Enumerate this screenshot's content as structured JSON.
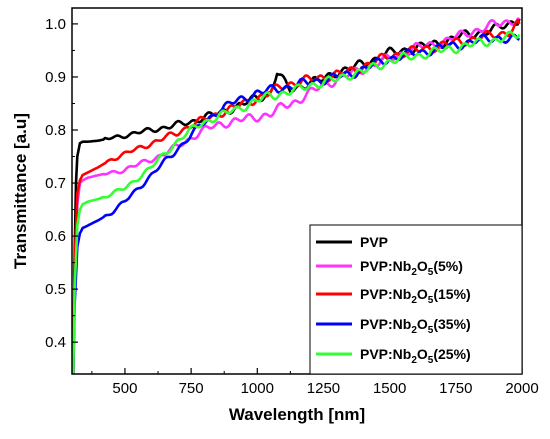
{
  "chart_data": {
    "type": "line",
    "title": "",
    "xlabel": "Wavelength [nm]",
    "ylabel": "Transmittance [a.u]",
    "xlim": [
      300,
      2000
    ],
    "ylim": [
      0.34,
      1.03
    ],
    "x_ticks": [
      500,
      750,
      1000,
      1250,
      1500,
      1750,
      2000
    ],
    "y_ticks": [
      0.4,
      0.5,
      0.6,
      0.7,
      0.8,
      0.9,
      1.0
    ],
    "x_tick_labels": [
      "500",
      "750",
      "1000",
      "1250",
      "1500",
      "1750",
      "2000"
    ],
    "y_tick_labels": [
      "0.4",
      "0.5",
      "0.6",
      "0.7",
      "0.8",
      "0.9",
      "1.0"
    ],
    "grid": false,
    "legend_position": "bottom-right",
    "series": [
      {
        "name": "PVP",
        "legend_parts": [
          "PVP"
        ],
        "color": "#000000",
        "x": [
          305,
          310,
          315,
          320,
          330,
          340,
          360,
          400,
          450,
          500,
          550,
          600,
          650,
          700,
          750,
          800,
          850,
          900,
          950,
          1000,
          1050,
          1075,
          1100,
          1125,
          1150,
          1200,
          1250,
          1300,
          1350,
          1400,
          1450,
          1500,
          1550,
          1600,
          1650,
          1700,
          1750,
          1800,
          1850,
          1900,
          1950,
          1990
        ],
        "y": [
          0.34,
          0.56,
          0.7,
          0.75,
          0.775,
          0.778,
          0.778,
          0.78,
          0.785,
          0.79,
          0.795,
          0.8,
          0.805,
          0.81,
          0.815,
          0.825,
          0.83,
          0.84,
          0.85,
          0.86,
          0.87,
          0.91,
          0.89,
          0.875,
          0.88,
          0.89,
          0.895,
          0.91,
          0.915,
          0.925,
          0.935,
          0.945,
          0.95,
          0.955,
          0.96,
          0.965,
          0.975,
          0.98,
          0.985,
          0.99,
          1.0,
          1.01
        ]
      },
      {
        "name": "PVP:Nb2O5(5%)",
        "legend_parts": [
          "PVP:Nb",
          "2",
          "O",
          "5",
          "(5%)"
        ],
        "color": "#ff33ff",
        "x": [
          305,
          310,
          320,
          330,
          340,
          360,
          400,
          450,
          500,
          550,
          600,
          650,
          700,
          750,
          800,
          850,
          900,
          950,
          1000,
          1050,
          1100,
          1150,
          1200,
          1250,
          1300,
          1350,
          1400,
          1450,
          1500,
          1550,
          1600,
          1650,
          1700,
          1750,
          1800,
          1850,
          1900,
          1950,
          1990
        ],
        "y": [
          0.34,
          0.52,
          0.66,
          0.7,
          0.705,
          0.71,
          0.715,
          0.72,
          0.725,
          0.735,
          0.745,
          0.755,
          0.77,
          0.785,
          0.8,
          0.81,
          0.815,
          0.82,
          0.825,
          0.83,
          0.845,
          0.855,
          0.87,
          0.885,
          0.895,
          0.905,
          0.915,
          0.925,
          0.935,
          0.945,
          0.955,
          0.96,
          0.965,
          0.975,
          0.985,
          0.99,
          1.0,
          1.005,
          1.01
        ]
      },
      {
        "name": "PVP:Nb2O5(15%)",
        "legend_parts": [
          "PVP:Nb",
          "2",
          "O",
          "5",
          "(15%)"
        ],
        "color": "#ff0000",
        "x": [
          305,
          310,
          320,
          330,
          340,
          360,
          400,
          450,
          500,
          550,
          600,
          650,
          700,
          750,
          800,
          850,
          900,
          950,
          1000,
          1050,
          1100,
          1150,
          1200,
          1250,
          1300,
          1350,
          1400,
          1450,
          1500,
          1550,
          1600,
          1650,
          1700,
          1750,
          1800,
          1850,
          1900,
          1950,
          1990
        ],
        "y": [
          0.34,
          0.55,
          0.68,
          0.705,
          0.715,
          0.72,
          0.73,
          0.745,
          0.755,
          0.765,
          0.775,
          0.785,
          0.795,
          0.81,
          0.82,
          0.83,
          0.84,
          0.85,
          0.86,
          0.87,
          0.885,
          0.89,
          0.895,
          0.9,
          0.905,
          0.91,
          0.92,
          0.93,
          0.94,
          0.945,
          0.95,
          0.955,
          0.96,
          0.965,
          0.97,
          0.975,
          0.98,
          0.985,
          1.0
        ]
      },
      {
        "name": "PVP:Nb2O5(35%)",
        "legend_parts": [
          "PVP:Nb",
          "2",
          "O",
          "5",
          "(35%)"
        ],
        "color": "#0000ff",
        "x": [
          305,
          310,
          320,
          330,
          340,
          360,
          400,
          450,
          500,
          550,
          600,
          650,
          700,
          750,
          800,
          850,
          900,
          950,
          1000,
          1050,
          1100,
          1150,
          1200,
          1250,
          1300,
          1350,
          1400,
          1450,
          1500,
          1550,
          1600,
          1650,
          1700,
          1750,
          1800,
          1850,
          1900,
          1950,
          1990
        ],
        "y": [
          0.34,
          0.47,
          0.58,
          0.605,
          0.615,
          0.62,
          0.63,
          0.645,
          0.665,
          0.69,
          0.715,
          0.74,
          0.765,
          0.79,
          0.815,
          0.835,
          0.85,
          0.86,
          0.87,
          0.875,
          0.88,
          0.885,
          0.89,
          0.895,
          0.9,
          0.905,
          0.915,
          0.925,
          0.935,
          0.94,
          0.945,
          0.95,
          0.955,
          0.96,
          0.965,
          0.97,
          0.975,
          0.97,
          0.97
        ]
      },
      {
        "name": "PVP:Nb2O5(25%)",
        "legend_parts": [
          "PVP:Nb",
          "2",
          "O",
          "5",
          "(25%)"
        ],
        "color": "#33ff33",
        "x": [
          305,
          310,
          320,
          330,
          340,
          360,
          400,
          450,
          500,
          550,
          600,
          650,
          700,
          750,
          800,
          850,
          900,
          950,
          1000,
          1050,
          1100,
          1150,
          1200,
          1250,
          1300,
          1350,
          1400,
          1450,
          1500,
          1550,
          1600,
          1650,
          1700,
          1750,
          1800,
          1850,
          1900,
          1950,
          1990
        ],
        "y": [
          0.34,
          0.5,
          0.62,
          0.65,
          0.66,
          0.665,
          0.67,
          0.68,
          0.69,
          0.71,
          0.73,
          0.755,
          0.78,
          0.8,
          0.815,
          0.825,
          0.835,
          0.845,
          0.855,
          0.865,
          0.87,
          0.875,
          0.885,
          0.89,
          0.895,
          0.905,
          0.91,
          0.92,
          0.93,
          0.935,
          0.94,
          0.945,
          0.95,
          0.955,
          0.96,
          0.965,
          0.97,
          0.975,
          0.98
        ]
      }
    ]
  }
}
